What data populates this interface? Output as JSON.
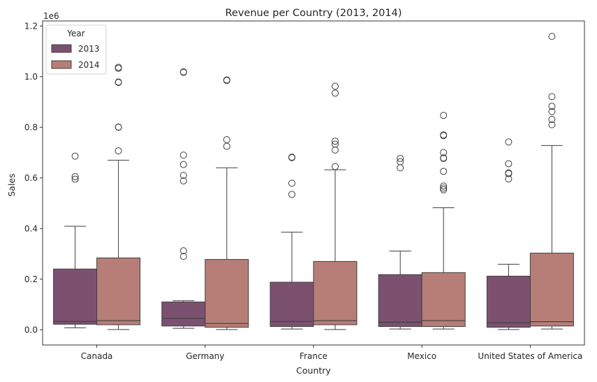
{
  "chart_data": {
    "type": "box",
    "title": "Revenue per Country (2013, 2014)",
    "xlabel": "Country",
    "ylabel": "Sales",
    "y_multiplier_label": "1e6",
    "ylim": [
      -0.06,
      1.22
    ],
    "y_ticks": [
      {
        "value": 0.0,
        "label": "0.0"
      },
      {
        "value": 0.2,
        "label": "0.2"
      },
      {
        "value": 0.4,
        "label": "0.4"
      },
      {
        "value": 0.6,
        "label": "0.6"
      },
      {
        "value": 0.8,
        "label": "0.8"
      },
      {
        "value": 1.0,
        "label": "1.0"
      },
      {
        "value": 1.2,
        "label": "1.2"
      }
    ],
    "grid": false,
    "legend": {
      "title": "Year",
      "position": "top-left"
    },
    "categories": [
      "Canada",
      "Germany",
      "France",
      "Mexico",
      "United States of America"
    ],
    "series": [
      {
        "name": "2013",
        "color": "#7c5170",
        "boxes": [
          {
            "whisker_low": 0.008,
            "q1": 0.022,
            "median": 0.033,
            "q3": 0.24,
            "whisker_high": 0.409,
            "outliers": [
              0.595,
              0.605,
              0.686
            ]
          },
          {
            "whisker_low": 0.006,
            "q1": 0.015,
            "median": 0.045,
            "q3": 0.11,
            "whisker_high": 0.115,
            "outliers": [
              0.29,
              0.312,
              0.588,
              0.61,
              0.653,
              0.69,
              1.017,
              1.019
            ]
          },
          {
            "whisker_low": 0.003,
            "q1": 0.013,
            "median": 0.033,
            "q3": 0.188,
            "whisker_high": 0.386,
            "outliers": [
              0.535,
              0.579,
              0.68,
              0.682
            ]
          },
          {
            "whisker_low": 0.003,
            "q1": 0.013,
            "median": 0.03,
            "q3": 0.218,
            "whisker_high": 0.311,
            "outliers": [
              0.64,
              0.664,
              0.677
            ]
          },
          {
            "whisker_low": 0.001,
            "q1": 0.01,
            "median": 0.028,
            "q3": 0.212,
            "whisker_high": 0.259,
            "outliers": [
              0.596,
              0.617,
              0.62,
              0.656,
              0.742
            ]
          }
        ]
      },
      {
        "name": "2014",
        "color": "#b67e77",
        "boxes": [
          {
            "whisker_low": 0.001,
            "q1": 0.02,
            "median": 0.036,
            "q3": 0.284,
            "whisker_high": 0.67,
            "outliers": [
              0.707,
              0.8,
              0.801,
              0.977,
              0.979,
              1.033,
              1.037
            ]
          },
          {
            "whisker_low": 0.001,
            "q1": 0.01,
            "median": 0.025,
            "q3": 0.278,
            "whisker_high": 0.64,
            "outliers": [
              0.725,
              0.751,
              0.985,
              0.987
            ]
          },
          {
            "whisker_low": 0.001,
            "q1": 0.02,
            "median": 0.036,
            "q3": 0.27,
            "whisker_high": 0.632,
            "outliers": [
              0.645,
              0.71,
              0.733,
              0.745,
              0.935,
              0.962
            ]
          },
          {
            "whisker_low": 0.003,
            "q1": 0.013,
            "median": 0.036,
            "q3": 0.226,
            "whisker_high": 0.482,
            "outliers": [
              0.553,
              0.56,
              0.568,
              0.626,
              0.677,
              0.679,
              0.7,
              0.767,
              0.77,
              0.847
            ]
          },
          {
            "whisker_low": 0.003,
            "q1": 0.015,
            "median": 0.032,
            "q3": 0.303,
            "whisker_high": 0.728,
            "outliers": [
              0.81,
              0.831,
              0.862,
              0.883,
              0.921,
              1.159
            ]
          }
        ]
      }
    ]
  }
}
